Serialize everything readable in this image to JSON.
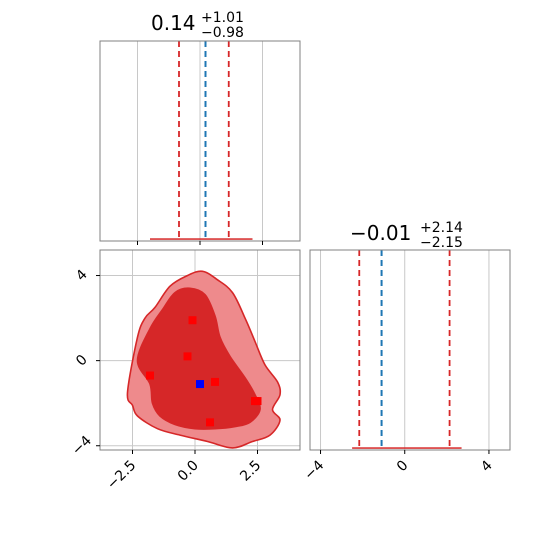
{
  "colors": {
    "histogram_fill": "#d62728",
    "contour_light": "#ee8a8c",
    "contour_dark": "#d62728",
    "contour_line": "#d62728",
    "quantile_line": "#d62728",
    "truth_line": "#1f77b4",
    "mean_marker": "#0000ff",
    "marker": "#ff0000",
    "grid": "#c8c8c8",
    "frame": "#808080"
  },
  "chart_data": [
    {
      "type": "histogram",
      "panel": "marginal-x",
      "title": {
        "median": "0.14",
        "plus": "+1.01",
        "minus": "−0.98"
      },
      "xlim": [
        -4,
        4
      ],
      "ylim": [
        0,
        1
      ],
      "quantiles": [
        -0.84,
        0.14,
        1.15
      ],
      "truth": 0.22,
      "bins": {
        "from": -2.0,
        "to": 2.1,
        "level": 0.006
      },
      "grid": true
    },
    {
      "type": "histogram",
      "panel": "marginal-y",
      "title": {
        "median": "−0.01",
        "plus": "+2.14",
        "minus": "−2.15"
      },
      "xlim": [
        -4.5,
        5
      ],
      "xticks": [
        "−4",
        "0",
        "4"
      ],
      "xtick_values": [
        -4,
        0,
        4
      ],
      "ylim": [
        0,
        1
      ],
      "quantiles": [
        -2.16,
        -0.01,
        2.13
      ],
      "truth": -1.1,
      "bins": {
        "from": -2.5,
        "to": 2.7,
        "level": 0.006
      },
      "grid": true
    },
    {
      "type": "contour",
      "panel": "joint",
      "xlim": [
        -3.8,
        4.2
      ],
      "ylim": [
        -4.2,
        5.2
      ],
      "xticks": [
        "−2.5",
        "0.0",
        "2.5"
      ],
      "xtick_values": [
        -2.5,
        0.0,
        2.5
      ],
      "yticks": [
        "−4",
        "0",
        "4"
      ],
      "ytick_values": [
        -4,
        0,
        4
      ],
      "grid": true,
      "outer_level": [
        [
          -2.7,
          -1.5
        ],
        [
          -2.3,
          1.1
        ],
        [
          -2.0,
          2.0
        ],
        [
          -1.6,
          2.5
        ],
        [
          -1.0,
          3.5
        ],
        [
          -0.3,
          4.0
        ],
        [
          0.3,
          4.2
        ],
        [
          0.9,
          3.8
        ],
        [
          1.5,
          3.2
        ],
        [
          2.0,
          2.0
        ],
        [
          2.4,
          0.9
        ],
        [
          2.8,
          -0.2
        ],
        [
          3.3,
          -1.0
        ],
        [
          3.4,
          -1.6
        ],
        [
          3.1,
          -2.3
        ],
        [
          3.4,
          -2.8
        ],
        [
          3.0,
          -3.5
        ],
        [
          2.3,
          -3.8
        ],
        [
          1.5,
          -4.1
        ],
        [
          0.5,
          -3.8
        ],
        [
          -0.6,
          -3.5
        ],
        [
          -1.5,
          -3.2
        ],
        [
          -2.3,
          -2.6
        ],
        [
          -2.5,
          -2.1
        ]
      ],
      "inner_level": [
        [
          -1.8,
          -1.1
        ],
        [
          -2.3,
          0.0
        ],
        [
          -1.8,
          1.5
        ],
        [
          -1.3,
          2.4
        ],
        [
          -0.8,
          3.2
        ],
        [
          -0.2,
          3.4
        ],
        [
          0.4,
          3.1
        ],
        [
          0.8,
          2.1
        ],
        [
          1.0,
          1.1
        ],
        [
          1.4,
          0.2
        ],
        [
          2.0,
          -0.8
        ],
        [
          2.4,
          -1.6
        ],
        [
          2.6,
          -2.3
        ],
        [
          2.2,
          -2.9
        ],
        [
          1.6,
          -3.1
        ],
        [
          0.8,
          -3.2
        ],
        [
          0.0,
          -3.2
        ],
        [
          -0.8,
          -3.0
        ],
        [
          -1.4,
          -2.6
        ],
        [
          -1.7,
          -2.0
        ]
      ],
      "points": [
        [
          -0.1,
          1.9
        ],
        [
          -0.3,
          0.2
        ],
        [
          -1.8,
          -0.7
        ],
        [
          0.8,
          -1.0
        ],
        [
          0.6,
          -2.9
        ],
        [
          2.4,
          -1.9
        ],
        [
          2.5,
          -1.9
        ]
      ],
      "highlight": [
        0.2,
        -1.1
      ]
    }
  ]
}
